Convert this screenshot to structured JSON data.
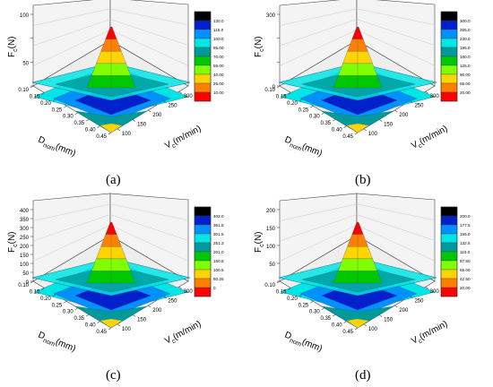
{
  "colors": [
    "#ff0000",
    "#ff7f00",
    "#ffd400",
    "#7fff00",
    "#00c800",
    "#009a9a",
    "#00e5e5",
    "#0090ff",
    "#0020cc",
    "#000000"
  ],
  "chart_data": [
    {
      "type": "surface3d",
      "panel_label": "(a)",
      "zlabel_main": "F",
      "zlabel_sub": "c",
      "zlabel_unit": "(N)",
      "z_ticks": [
        "",
        "50",
        "",
        "100"
      ],
      "z_max": 130,
      "x_ticks": [
        "0.10",
        "0.15",
        "0.20",
        "0.25",
        "0.30",
        "0.35",
        "0.40",
        "0.45"
      ],
      "y_ticks": [
        "100",
        "150",
        "200",
        "250",
        "300"
      ],
      "xlabel_main": "D",
      "xlabel_sub": "nom",
      "xlabel_unit": "(mm)",
      "ylabel_main": "V",
      "ylabel_sub": "c",
      "ylabel_unit": "(m/min)",
      "legend": [
        "10.00",
        "25.00",
        "40.00",
        "55.00",
        "70.00",
        "85.00",
        "100.0",
        "115.0",
        "130.0"
      ],
      "peak_value": 120
    },
    {
      "type": "surface3d",
      "panel_label": "(b)",
      "zlabel_main": "F",
      "zlabel_sub": "c",
      "zlabel_unit": "(N)",
      "z_ticks": [
        "0",
        "",
        "",
        "300"
      ],
      "z_max": 300,
      "x_ticks": [
        "0.10",
        "0.15",
        "0.20",
        "0.25",
        "0.30",
        "0.35",
        "0.40",
        "0.45"
      ],
      "y_ticks": [
        "100",
        "150",
        "200",
        "250",
        "300"
      ],
      "xlabel_main": "D",
      "xlabel_sub": "nom",
      "xlabel_unit": "(mm)",
      "ylabel_main": "V",
      "ylabel_sub": "c",
      "ylabel_unit": "(m/min)",
      "legend": [
        "20.00",
        "55.00",
        "90.00",
        "125.0",
        "160.0",
        "195.0",
        "230.0",
        "265.0",
        "300.0"
      ],
      "peak_value": 290
    },
    {
      "type": "surface3d",
      "panel_label": "(c)",
      "zlabel_main": "F",
      "zlabel_sub": "c",
      "zlabel_unit": "(N)",
      "z_ticks": [
        "0",
        "50",
        "100",
        "150",
        "200",
        "250",
        "300",
        "350",
        "400"
      ],
      "z_max": 400,
      "x_ticks": [
        "0.10",
        "0.15",
        "0.20",
        "0.25",
        "0.30",
        "0.35",
        "0.40",
        "0.45"
      ],
      "y_ticks": [
        "100",
        "150",
        "200",
        "250",
        "300"
      ],
      "xlabel_main": "D",
      "xlabel_sub": "nom",
      "xlabel_unit": "(mm)",
      "ylabel_main": "V",
      "ylabel_sub": "c",
      "ylabel_unit": "(m/min)",
      "legend": [
        "0",
        "50.25",
        "100.5",
        "150.8",
        "201.0",
        "251.3",
        "301.5",
        "351.8",
        "402.0"
      ],
      "peak_value": 390
    },
    {
      "type": "surface3d",
      "panel_label": "(d)",
      "zlabel_main": "F",
      "zlabel_sub": "c",
      "zlabel_unit": "(N)",
      "z_ticks": [
        "",
        "50",
        "100",
        "150",
        "200"
      ],
      "z_max": 200,
      "x_ticks": [
        "0.10",
        "0.15",
        "0.20",
        "0.25",
        "0.30",
        "0.35",
        "0.40",
        "0.45"
      ],
      "y_ticks": [
        "100",
        "150",
        "200",
        "250",
        "300"
      ],
      "xlabel_main": "D",
      "xlabel_sub": "nom",
      "xlabel_unit": "(mm)",
      "ylabel_main": "V",
      "ylabel_sub": "c",
      "ylabel_unit": "(m/min)",
      "legend": [
        "20.00",
        "42.50",
        "65.00",
        "87.50",
        "110.0",
        "132.5",
        "155.0",
        "177.5",
        "200.0"
      ],
      "peak_value": 195
    }
  ]
}
